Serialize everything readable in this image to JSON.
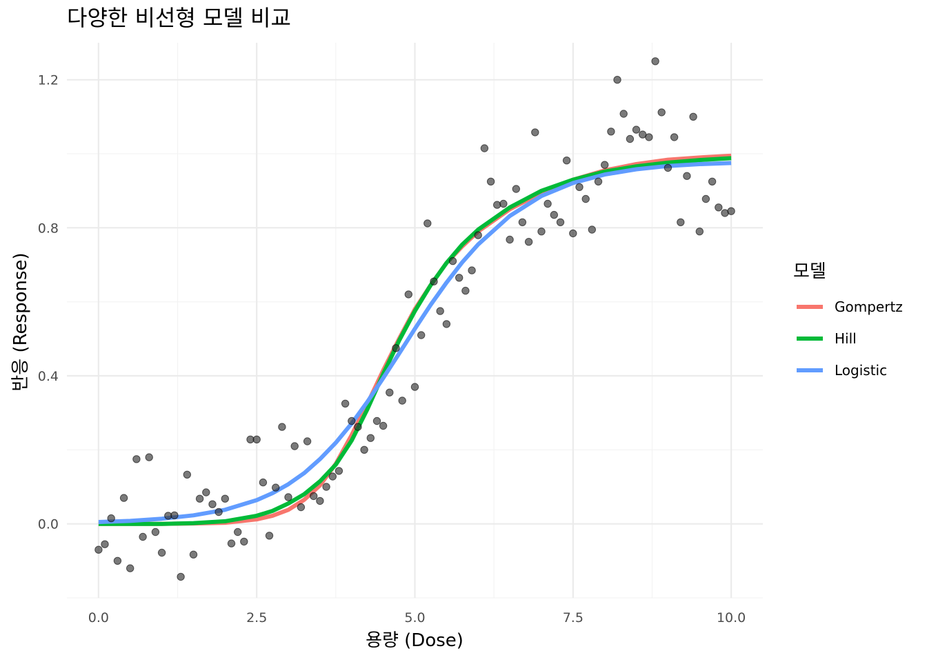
{
  "chart_data": {
    "type": "line",
    "title": "다양한 비선형 모델 비교",
    "xlabel": "용량 (Dose)",
    "ylabel": "반응 (Response)",
    "xlim": [
      -0.5,
      10.5
    ],
    "ylim": [
      -0.2,
      1.3
    ],
    "x_ticks": [
      0.0,
      2.5,
      5.0,
      7.5,
      10.0
    ],
    "x_tick_labels": [
      "0.0",
      "2.5",
      "5.0",
      "7.5",
      "10.0"
    ],
    "y_ticks": [
      0.0,
      0.4,
      0.8,
      1.2
    ],
    "y_tick_labels": [
      "0.0",
      "0.4",
      "0.8",
      "1.2"
    ],
    "grid": true,
    "legend": {
      "title": "모델",
      "placement": "right"
    },
    "series": [
      {
        "name": "Gompertz",
        "color": "#F8766D",
        "x": [
          0,
          0.5,
          1,
          1.5,
          2,
          2.5,
          2.75,
          3,
          3.25,
          3.5,
          3.75,
          4,
          4.25,
          4.5,
          4.75,
          5,
          5.25,
          5.5,
          5.75,
          6,
          6.5,
          7,
          7.5,
          8,
          8.5,
          9,
          9.5,
          10
        ],
        "y": [
          0,
          0,
          0,
          0.001,
          0.003,
          0.012,
          0.022,
          0.038,
          0.065,
          0.104,
          0.162,
          0.24,
          0.325,
          0.415,
          0.5,
          0.58,
          0.645,
          0.705,
          0.75,
          0.79,
          0.85,
          0.895,
          0.93,
          0.955,
          0.972,
          0.984,
          0.99,
          0.995
        ]
      },
      {
        "name": "Hill",
        "color": "#00BA38",
        "x": [
          0,
          0.5,
          1,
          1.5,
          2,
          2.5,
          2.75,
          3,
          3.25,
          3.5,
          3.75,
          4,
          4.25,
          4.5,
          4.75,
          5,
          5.25,
          5.5,
          5.75,
          6,
          6.5,
          7,
          7.5,
          8,
          8.5,
          9,
          9.5,
          10
        ],
        "y": [
          0,
          0,
          0,
          0.002,
          0.007,
          0.022,
          0.035,
          0.055,
          0.08,
          0.115,
          0.16,
          0.225,
          0.31,
          0.405,
          0.495,
          0.575,
          0.645,
          0.705,
          0.755,
          0.795,
          0.855,
          0.9,
          0.93,
          0.952,
          0.966,
          0.976,
          0.983,
          0.988
        ]
      },
      {
        "name": "Logistic",
        "color": "#619CFF",
        "x": [
          0,
          0.5,
          1,
          1.5,
          2,
          2.5,
          2.75,
          3,
          3.25,
          3.5,
          3.75,
          4,
          4.25,
          4.5,
          4.75,
          5,
          5.25,
          5.5,
          5.75,
          6,
          6.5,
          7,
          7.5,
          8,
          8.5,
          9,
          9.5,
          10
        ],
        "y": [
          0.005,
          0.008,
          0.014,
          0.023,
          0.038,
          0.064,
          0.083,
          0.107,
          0.137,
          0.175,
          0.219,
          0.271,
          0.33,
          0.394,
          0.46,
          0.527,
          0.592,
          0.652,
          0.707,
          0.755,
          0.832,
          0.886,
          0.921,
          0.944,
          0.958,
          0.967,
          0.972,
          0.975
        ]
      }
    ],
    "points": {
      "color": "#333333",
      "x": [
        0.0,
        0.1,
        0.2,
        0.3,
        0.4,
        0.5,
        0.6,
        0.7,
        0.8,
        0.9,
        1.0,
        1.1,
        1.2,
        1.3,
        1.4,
        1.5,
        1.6,
        1.7,
        1.8,
        1.9,
        2.0,
        2.1,
        2.2,
        2.3,
        2.4,
        2.5,
        2.6,
        2.7,
        2.8,
        2.9,
        3.0,
        3.1,
        3.2,
        3.3,
        3.4,
        3.5,
        3.6,
        3.7,
        3.8,
        3.9,
        4.0,
        4.1,
        4.2,
        4.3,
        4.4,
        4.5,
        4.6,
        4.7,
        4.8,
        4.9,
        5.0,
        5.1,
        5.2,
        5.3,
        5.4,
        5.5,
        5.6,
        5.7,
        5.8,
        5.9,
        6.0,
        6.1,
        6.2,
        6.3,
        6.4,
        6.5,
        6.6,
        6.7,
        6.8,
        6.9,
        7.0,
        7.1,
        7.2,
        7.3,
        7.4,
        7.5,
        7.6,
        7.7,
        7.8,
        7.9,
        8.0,
        8.1,
        8.2,
        8.3,
        8.4,
        8.5,
        8.6,
        8.7,
        8.8,
        8.9,
        9.0,
        9.1,
        9.2,
        9.3,
        9.4,
        9.5,
        9.6,
        9.7,
        9.8,
        9.9,
        10.0
      ],
      "y": [
        -0.07,
        -0.055,
        0.015,
        -0.1,
        0.07,
        -0.12,
        0.175,
        -0.035,
        0.18,
        -0.022,
        -0.078,
        0.022,
        0.023,
        -0.143,
        0.133,
        -0.083,
        0.068,
        0.085,
        0.053,
        0.032,
        0.068,
        -0.053,
        -0.022,
        -0.048,
        0.228,
        0.228,
        0.112,
        -0.032,
        0.098,
        0.262,
        0.072,
        0.21,
        0.045,
        0.223,
        0.075,
        0.062,
        0.1,
        0.128,
        0.143,
        0.325,
        0.278,
        0.262,
        0.2,
        0.232,
        0.278,
        0.265,
        0.355,
        0.475,
        0.333,
        0.62,
        0.37,
        0.51,
        0.812,
        0.655,
        0.575,
        0.54,
        0.71,
        0.665,
        0.63,
        0.685,
        0.78,
        1.015,
        0.925,
        0.862,
        0.865,
        0.768,
        0.905,
        0.815,
        0.762,
        1.058,
        0.79,
        0.865,
        0.835,
        0.815,
        0.982,
        0.785,
        0.91,
        0.878,
        0.795,
        0.925,
        0.97,
        1.06,
        1.2,
        1.108,
        1.04,
        1.065,
        1.052,
        1.045,
        1.25,
        1.112,
        0.962,
        1.045,
        0.815,
        0.94,
        1.1,
        0.79,
        0.878,
        0.925,
        0.855,
        0.84,
        0.845
      ]
    }
  }
}
